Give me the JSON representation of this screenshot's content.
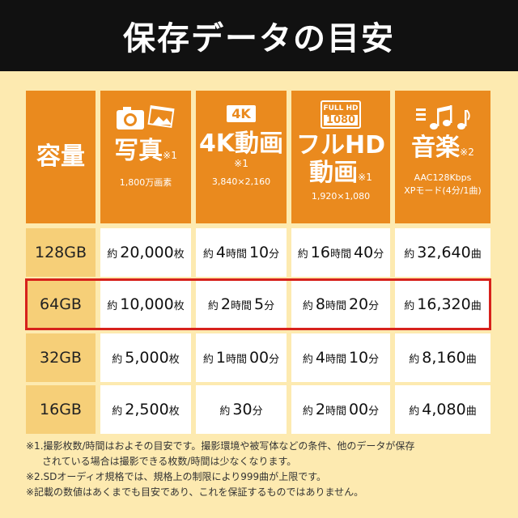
{
  "title": "保存データの目安",
  "headers": {
    "capacity": "容量",
    "photo": {
      "label": "写真",
      "note": "※1",
      "sub": "1,800万画素",
      "icon": "camera-photo-icon"
    },
    "k4": {
      "badge": "4K",
      "label": "4K動画",
      "note": "※1",
      "sub": "3,840×2,160"
    },
    "fhd": {
      "badge_top": "FULL HD",
      "badge_bottom": "1080",
      "label_1": "フルHD",
      "label_2": "動画",
      "note": "※1",
      "sub": "1,920×1,080"
    },
    "music": {
      "label": "音楽",
      "note": "※2",
      "sub_1": "AAC128Kbps",
      "sub_2": "XPモード(4分/1曲)",
      "icon": "music-notes-icon"
    }
  },
  "rows": [
    {
      "capacity": "128GB",
      "photo": {
        "pre": "約",
        "num": "20,000",
        "unit": "枚"
      },
      "k4": {
        "pre": "約",
        "h": "4",
        "hu": "時間",
        "m": "10",
        "mu": "分"
      },
      "fhd": {
        "pre": "約",
        "h": "16",
        "hu": "時間",
        "m": "40",
        "mu": "分"
      },
      "music": {
        "pre": "約",
        "num": "32,640",
        "unit": "曲"
      }
    },
    {
      "capacity": "64GB",
      "photo": {
        "pre": "約",
        "num": "10,000",
        "unit": "枚"
      },
      "k4": {
        "pre": "約",
        "h": "2",
        "hu": "時間",
        "m": "5",
        "mu": "分"
      },
      "fhd": {
        "pre": "約",
        "h": "8",
        "hu": "時間",
        "m": "20",
        "mu": "分"
      },
      "music": {
        "pre": "約",
        "num": "16,320",
        "unit": "曲"
      }
    },
    {
      "capacity": "32GB",
      "photo": {
        "pre": "約",
        "num": "5,000",
        "unit": "枚"
      },
      "k4": {
        "pre": "約",
        "h": "1",
        "hu": "時間",
        "m": "00",
        "mu": "分"
      },
      "fhd": {
        "pre": "約",
        "h": "4",
        "hu": "時間",
        "m": "10",
        "mu": "分"
      },
      "music": {
        "pre": "約",
        "num": "8,160",
        "unit": "曲"
      }
    },
    {
      "capacity": "16GB",
      "photo": {
        "pre": "約",
        "num": "2,500",
        "unit": "枚"
      },
      "k4": {
        "pre": "約",
        "num": "30",
        "unit": "分"
      },
      "fhd": {
        "pre": "約",
        "h": "2",
        "hu": "時間",
        "m": "00",
        "mu": "分"
      },
      "music": {
        "pre": "約",
        "num": "4,080",
        "unit": "曲"
      }
    }
  ],
  "notes": {
    "n1a": "※1.撮影枚数/時間はおよその目安です。撮影環境や被写体などの条件、他のデータが保存",
    "n1b": "されている場合は撮影できる枚数/時間は少なくなります。",
    "n2": "※2.SDオーディオ規格では、規格上の制限により999曲が上限です。",
    "n3": "※記載の数値はあくまでも目安であり、これを保証するものではありません。"
  },
  "colors": {
    "header": "#ea8a1e",
    "capacity": "#f6cf78",
    "background": "#fdeab0",
    "highlight": "#d7211b",
    "title_bg": "#111111"
  }
}
